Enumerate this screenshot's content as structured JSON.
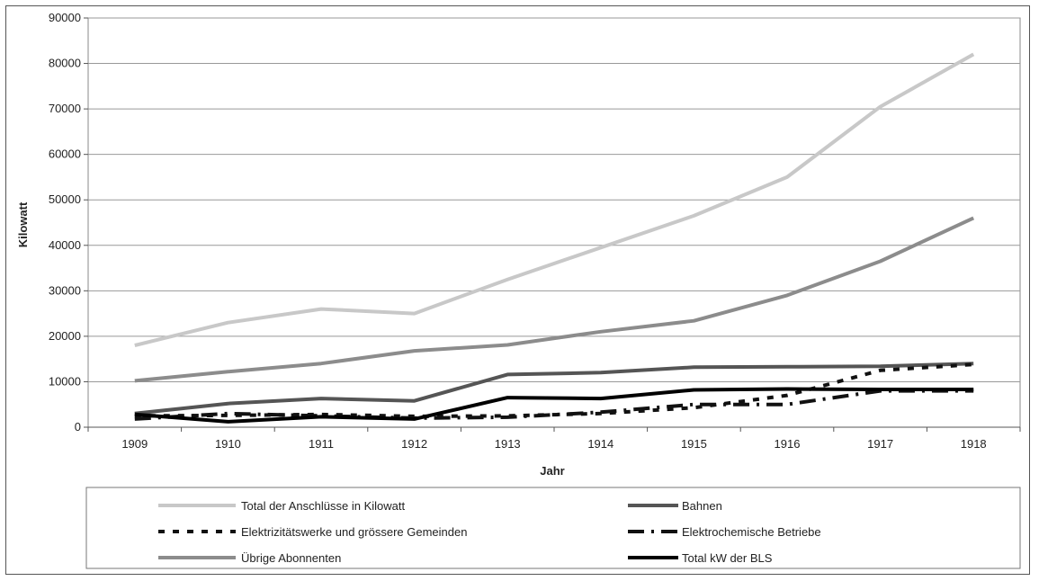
{
  "chart_data": {
    "type": "line",
    "title": "",
    "xlabel": "Jahr",
    "ylabel": "Kilowatt",
    "ylim": [
      0,
      90000
    ],
    "y_ticks": [
      0,
      10000,
      20000,
      30000,
      40000,
      50000,
      60000,
      70000,
      80000,
      90000
    ],
    "grid": true,
    "legend_position": "bottom",
    "categories": [
      "1909",
      "1910",
      "1911",
      "1912",
      "1913",
      "1914",
      "1915",
      "1916",
      "1917",
      "1918"
    ],
    "series": [
      {
        "name": "Total der Anschlüsse in Kilowatt",
        "color": "#c8c8c8",
        "style": "solid",
        "values": [
          18000,
          23000,
          26000,
          25000,
          32500,
          39500,
          46500,
          55000,
          70500,
          82000
        ]
      },
      {
        "name": "Bahnen",
        "color": "#555555",
        "style": "solid",
        "values": [
          3000,
          5200,
          6300,
          5800,
          11600,
          12000,
          13200,
          13300,
          13400,
          14000
        ]
      },
      {
        "name": "Elektrizitätswerke und grössere Gemeinden",
        "color": "#111111",
        "style": "dash",
        "values": [
          2500,
          2600,
          2800,
          2400,
          2500,
          3000,
          4300,
          7000,
          12500,
          13800
        ]
      },
      {
        "name": "Elektrochemische Betriebe",
        "color": "#111111",
        "style": "longdash",
        "values": [
          1800,
          3000,
          2500,
          2000,
          2200,
          3300,
          5000,
          5000,
          8000,
          8000
        ]
      },
      {
        "name": "Übrige Abonnenten",
        "color": "#8c8c8c",
        "style": "solid",
        "values": [
          10200,
          12200,
          14000,
          16800,
          18100,
          21000,
          23400,
          29000,
          36500,
          46000
        ]
      },
      {
        "name": "Total kW der BLS",
        "color": "#000000",
        "style": "solid",
        "values": [
          2800,
          1200,
          2300,
          1800,
          6500,
          6300,
          8200,
          8400,
          8300,
          8300
        ]
      }
    ]
  }
}
